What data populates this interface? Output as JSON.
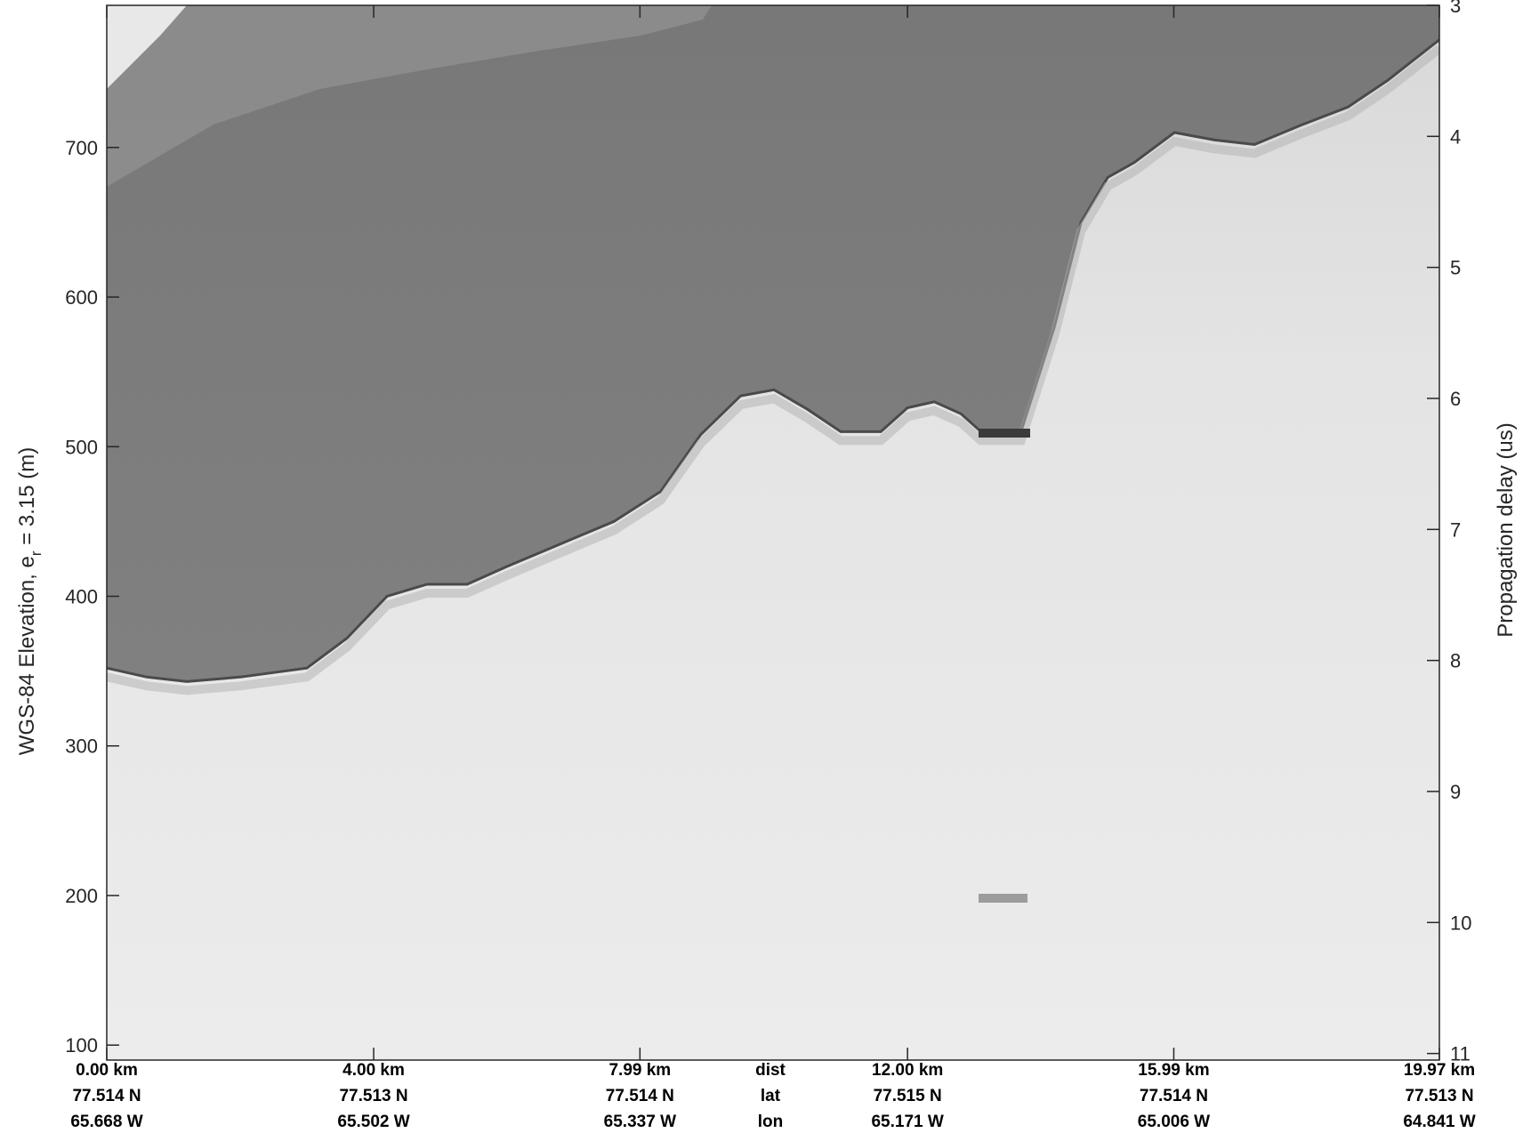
{
  "chart_data": {
    "type": "radargram",
    "title": "",
    "ylabel_left_main": "WGS-84 Elevation, e",
    "ylabel_left_sub": "r",
    "ylabel_left_tail": " = 3.15 (m)",
    "ylabel_right": "Propagation delay (us)",
    "x_range_km": [
      0,
      19.97
    ],
    "ylim_elevation_m": [
      90,
      795
    ],
    "ylim_delay_us": [
      3,
      11.05
    ],
    "y_ticks_left": [
      100,
      200,
      300,
      400,
      500,
      600,
      700
    ],
    "y_ticks_right": [
      3,
      4,
      5,
      6,
      7,
      8,
      9,
      10,
      11
    ],
    "bottom_rows": [
      {
        "name": "dist",
        "values": [
          "0.00 km",
          "4.00 km",
          "7.99 km",
          "12.00 km",
          "15.99 km",
          "19.97 km"
        ]
      },
      {
        "name": "lat",
        "values": [
          "77.514 N",
          "77.513 N",
          "77.514 N",
          "77.515 N",
          "77.514 N",
          "77.513 N"
        ]
      },
      {
        "name": "lon",
        "values": [
          "65.668 W",
          "65.502 W",
          "65.337 W",
          "65.171 W",
          "65.006 W",
          "64.841 W"
        ]
      }
    ],
    "bottom_tick_km": [
      0,
      4.0,
      7.99,
      12.0,
      15.99,
      19.97
    ],
    "surface_profile": {
      "x_km": [
        0,
        0.6,
        1.2,
        2.0,
        3.0,
        3.6,
        4.2,
        4.8,
        5.4,
        6.0,
        6.8,
        7.6,
        8.3,
        8.9,
        9.5,
        10.0,
        10.5,
        11.0,
        11.6,
        12.0,
        12.4,
        12.8,
        13.1,
        13.7,
        14.2,
        14.6,
        15.0,
        15.4,
        16.0,
        16.6,
        17.2,
        17.9,
        18.6,
        19.2,
        19.97
      ],
      "elevation_m": [
        352,
        346,
        343,
        346,
        352,
        372,
        400,
        408,
        408,
        420,
        435,
        450,
        470,
        508,
        534,
        538,
        525,
        510,
        510,
        526,
        530,
        522,
        510,
        510,
        580,
        650,
        680,
        690,
        710,
        705,
        702,
        715,
        727,
        745,
        772
      ]
    },
    "colors": {
      "air": "#7c7c7c",
      "ice": "#e6e6e6",
      "surface": "#545454"
    }
  }
}
